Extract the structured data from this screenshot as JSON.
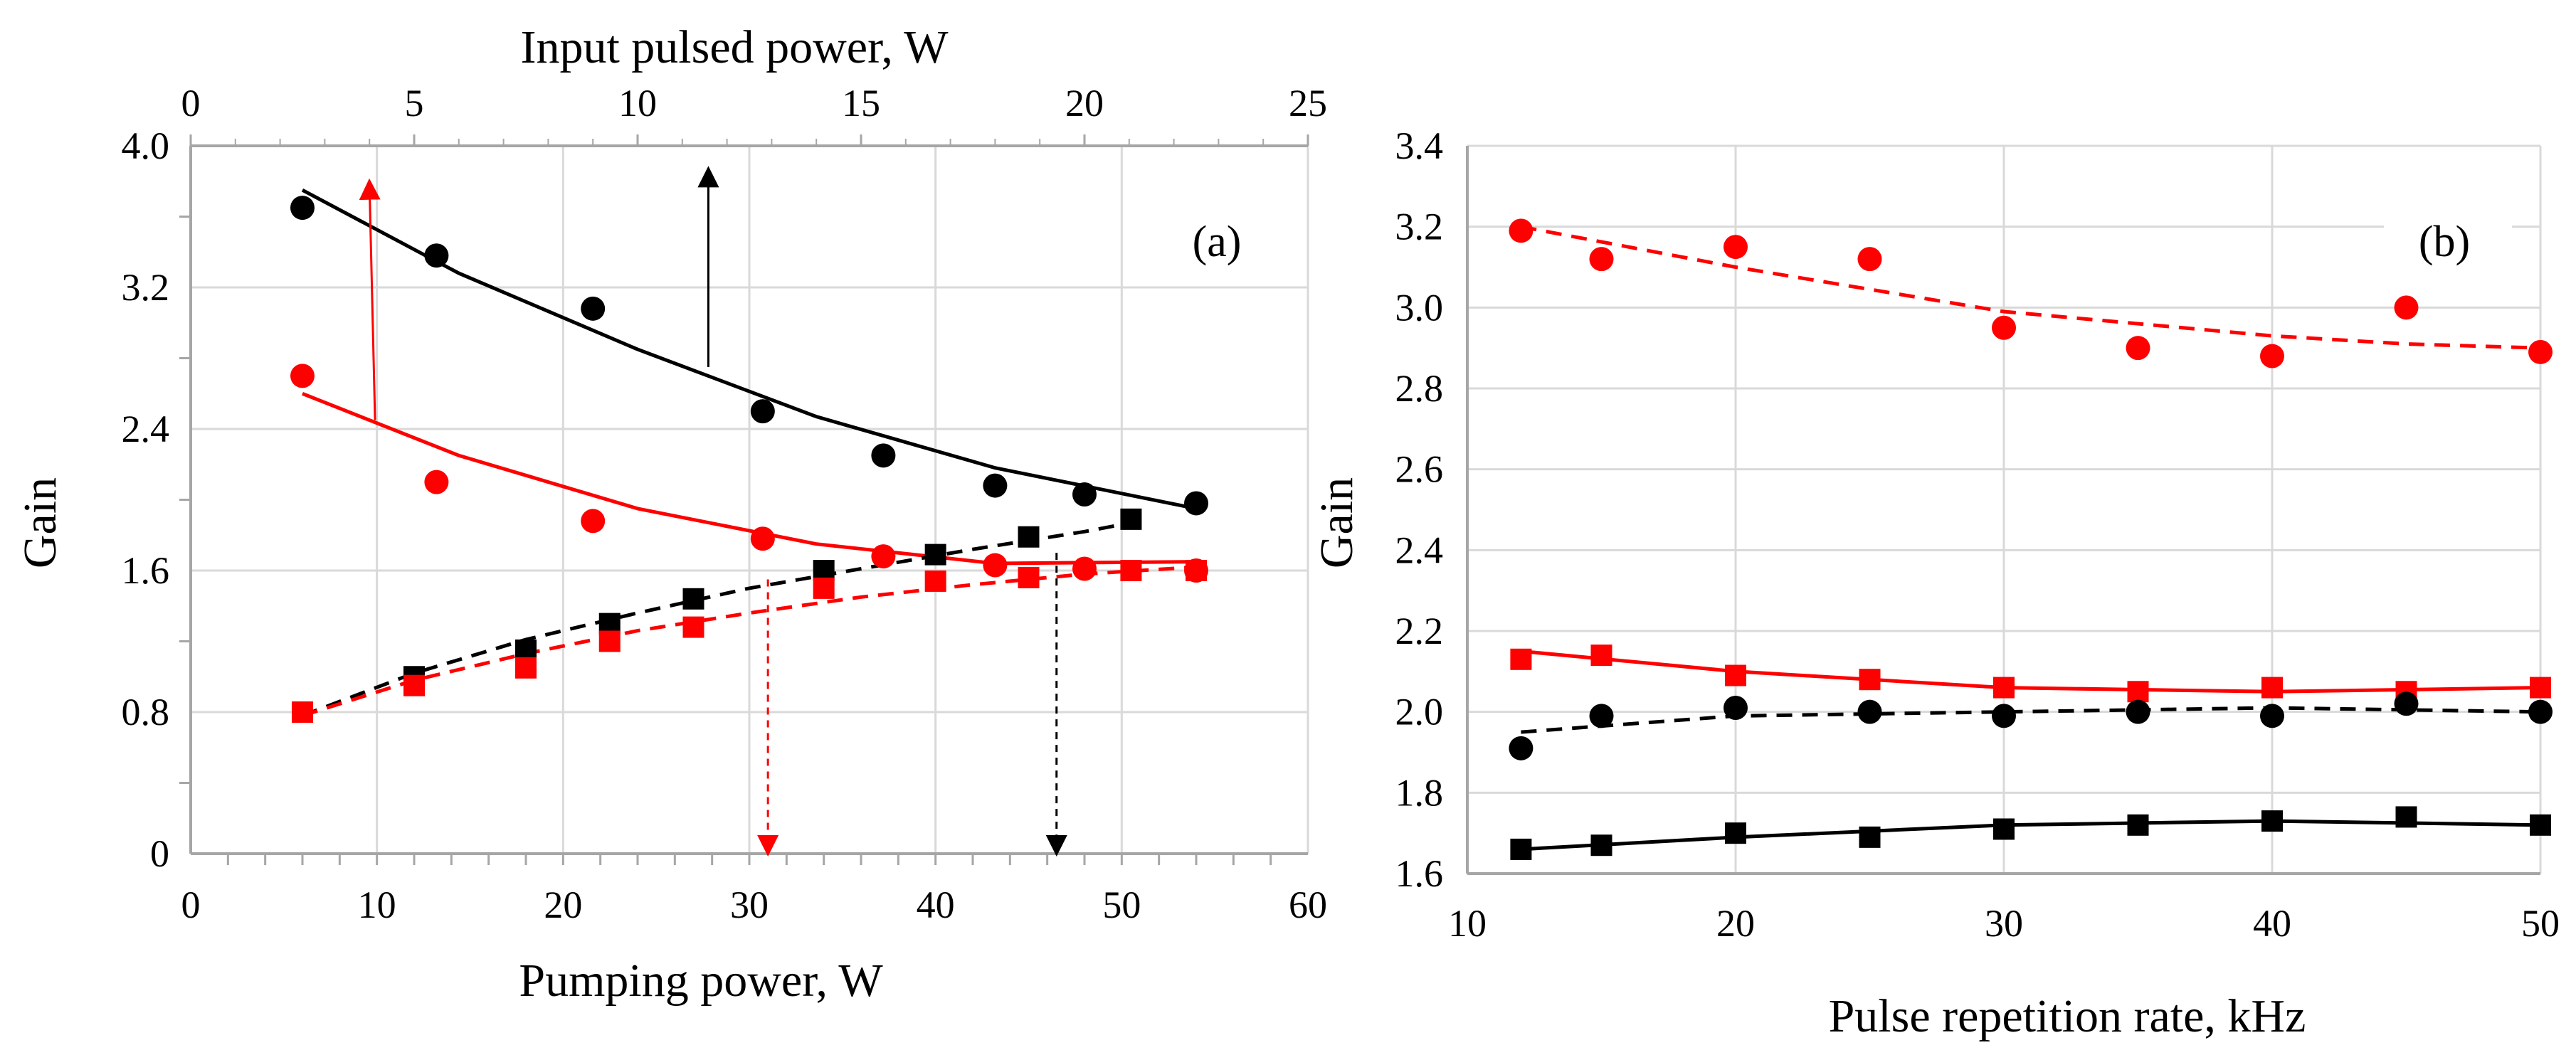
{
  "chart_data": [
    {
      "type": "scatter",
      "panel_label": "(a)",
      "xlabel": "Pumping power, W",
      "x2label": "Input pulsed power, W",
      "ylabel": "Gain",
      "xlim": [
        0,
        60
      ],
      "x2lim": [
        0,
        25
      ],
      "ylim": [
        0,
        4.0
      ],
      "xticks": [
        0,
        10,
        20,
        30,
        40,
        50,
        60
      ],
      "x2ticks": [
        0,
        5,
        10,
        15,
        20,
        25
      ],
      "yticks": [
        "0",
        "0.8",
        "1.6",
        "2.4",
        "3.2",
        "4.0"
      ],
      "grid": true,
      "series": [
        {
          "marker": "circle",
          "color": "#000000",
          "axis": "top",
          "x": [
            2.5,
            5.5,
            9.0,
            12.8,
            15.5,
            18.0,
            20.0,
            22.5
          ],
          "y": [
            3.65,
            3.38,
            3.08,
            2.5,
            2.25,
            2.08,
            2.03,
            1.98
          ],
          "fit": {
            "style": "solid",
            "x": [
              2.5,
              6,
              10,
              14,
              18,
              22.5
            ],
            "y": [
              3.75,
              3.28,
              2.85,
              2.47,
              2.18,
              1.95
            ]
          }
        },
        {
          "marker": "circle",
          "color": "#ff0000",
          "axis": "top",
          "x": [
            2.5,
            5.5,
            9.0,
            12.8,
            15.5,
            18.0,
            20.0,
            22.5
          ],
          "y": [
            2.7,
            2.1,
            1.88,
            1.78,
            1.68,
            1.63,
            1.61,
            1.6
          ],
          "fit": {
            "style": "solid",
            "x": [
              2.5,
              6,
              10,
              14,
              18,
              22.5
            ],
            "y": [
              2.6,
              2.25,
              1.95,
              1.75,
              1.64,
              1.65
            ]
          }
        },
        {
          "marker": "square",
          "color": "#000000",
          "axis": "bottom",
          "x": [
            6,
            12,
            18,
            22.5,
            27,
            34,
            40,
            45,
            50.5
          ],
          "y": [
            0.8,
            1.0,
            1.15,
            1.3,
            1.44,
            1.6,
            1.69,
            1.79,
            1.89
          ],
          "fit": {
            "style": "dashed",
            "x": [
              6,
              12,
              18,
              24,
              30,
              36,
              42,
              48,
              51
            ],
            "y": [
              0.78,
              1.02,
              1.21,
              1.36,
              1.5,
              1.61,
              1.72,
              1.82,
              1.88
            ]
          }
        },
        {
          "marker": "square",
          "color": "#ff0000",
          "axis": "bottom",
          "x": [
            6,
            12,
            18,
            22.5,
            27,
            34,
            40,
            45,
            50.5,
            54
          ],
          "y": [
            0.8,
            0.95,
            1.05,
            1.2,
            1.28,
            1.5,
            1.54,
            1.56,
            1.6,
            1.6
          ],
          "fit": {
            "style": "dashed",
            "x": [
              6,
              12,
              18,
              24,
              30,
              36,
              42,
              48,
              54
            ],
            "y": [
              0.78,
              0.98,
              1.13,
              1.26,
              1.36,
              1.45,
              1.52,
              1.58,
              1.62
            ]
          }
        }
      ],
      "arrows": [
        {
          "color": "#ff0000",
          "style": "solid",
          "x": [
            9.9,
            9.6
          ],
          "y": [
            2.45,
            3.78
          ]
        },
        {
          "color": "#000000",
          "style": "solid",
          "x": [
            27.8,
            27.8
          ],
          "y": [
            2.75,
            3.85
          ]
        },
        {
          "color": "#ff0000",
          "style": "dashed",
          "x": [
            31.0,
            31.0
          ],
          "y": [
            1.55,
            0.02
          ]
        },
        {
          "color": "#000000",
          "style": "dashed",
          "x": [
            46.5,
            46.5
          ],
          "y": [
            1.7,
            0.02
          ]
        }
      ]
    },
    {
      "type": "scatter",
      "panel_label": "(b)",
      "xlabel": "Pulse repetition rate, kHz",
      "ylabel": "Gain",
      "xlim": [
        10,
        50
      ],
      "ylim": [
        1.6,
        3.4
      ],
      "xticks": [
        10,
        20,
        30,
        40,
        50
      ],
      "yticks": [
        "1.6",
        "1.8",
        "2.0",
        "2.2",
        "2.4",
        "2.6",
        "2.8",
        "3.0",
        "3.2",
        "3.4"
      ],
      "grid": true,
      "series": [
        {
          "marker": "circle",
          "color": "#ff0000",
          "x": [
            12,
            15,
            20,
            25,
            30,
            35,
            40,
            45,
            50
          ],
          "y": [
            3.19,
            3.12,
            3.15,
            3.12,
            2.95,
            2.9,
            2.88,
            3.0,
            2.89
          ],
          "fit": {
            "style": "dashed",
            "x": [
              12,
              20,
              30,
              40,
              45,
              50
            ],
            "y": [
              3.2,
              3.1,
              2.99,
              2.93,
              2.91,
              2.9
            ]
          }
        },
        {
          "marker": "square",
          "color": "#ff0000",
          "x": [
            12,
            15,
            20,
            25,
            30,
            35,
            40,
            45,
            50
          ],
          "y": [
            2.13,
            2.14,
            2.09,
            2.08,
            2.06,
            2.05,
            2.06,
            2.05,
            2.06
          ],
          "fit": {
            "style": "solid",
            "x": [
              12,
              20,
              30,
              40,
              50
            ],
            "y": [
              2.15,
              2.1,
              2.06,
              2.05,
              2.06
            ]
          }
        },
        {
          "marker": "circle",
          "color": "#000000",
          "x": [
            12,
            15,
            20,
            25,
            30,
            35,
            40,
            45,
            50
          ],
          "y": [
            1.91,
            1.99,
            2.01,
            2.0,
            1.99,
            2.0,
            1.99,
            2.02,
            2.0
          ],
          "fit": {
            "style": "dashed",
            "x": [
              12,
              20,
              30,
              40,
              50
            ],
            "y": [
              1.95,
              1.99,
              2.0,
              2.01,
              2.0
            ]
          }
        },
        {
          "marker": "square",
          "color": "#000000",
          "x": [
            12,
            15,
            20,
            25,
            30,
            35,
            40,
            45,
            50
          ],
          "y": [
            1.66,
            1.67,
            1.7,
            1.69,
            1.71,
            1.72,
            1.73,
            1.74,
            1.72
          ],
          "fit": {
            "style": "solid",
            "x": [
              12,
              20,
              30,
              40,
              50
            ],
            "y": [
              1.66,
              1.69,
              1.72,
              1.73,
              1.72
            ]
          }
        }
      ]
    }
  ]
}
